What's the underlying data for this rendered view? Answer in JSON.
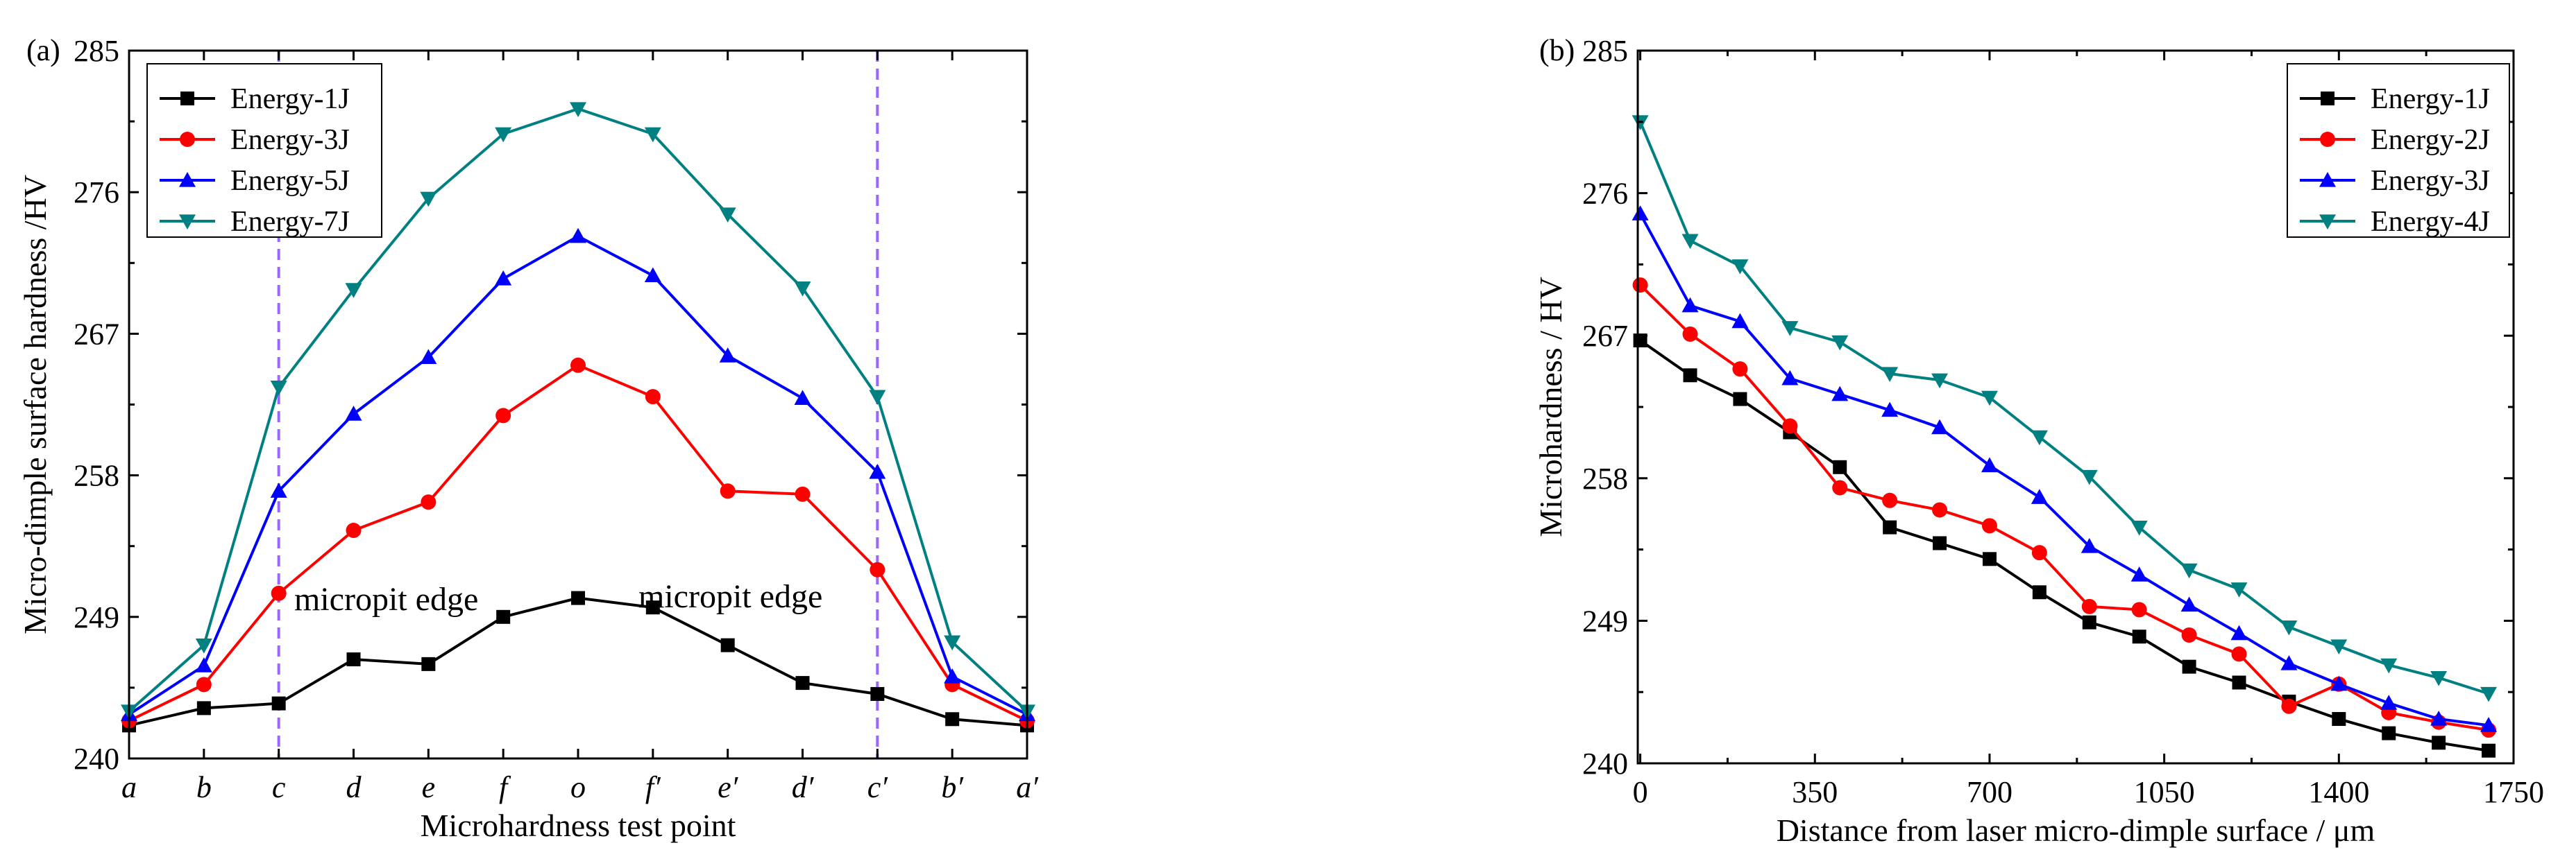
{
  "chart_data": [
    {
      "type": "line",
      "panel_label": "(a)",
      "xlabel": "Microhardness test point",
      "ylabel": "Micro-dimple surface hardness /HV",
      "categories": [
        "a",
        "b",
        "c",
        "d",
        "e",
        "f",
        "o",
        "f′",
        "e′",
        "d′",
        "c′",
        "b′",
        "a′"
      ],
      "ylim": [
        240,
        285
      ],
      "yticks": [
        "240",
        "249",
        "258",
        "267",
        "276",
        "285"
      ],
      "legend_position": "top-left",
      "grid": false,
      "series": [
        {
          "name": "Energy-1J",
          "color": "#000000",
          "marker": "square",
          "values": [
            242.1,
            243.2,
            243.5,
            246.3,
            246.0,
            249.0,
            250.2,
            249.6,
            247.2,
            244.8,
            244.1,
            242.5,
            242.1
          ]
        },
        {
          "name": "Energy-3J",
          "color": "#ff0000",
          "marker": "circle",
          "values": [
            242.4,
            244.7,
            250.5,
            254.5,
            256.3,
            261.8,
            265.0,
            263.0,
            257.0,
            256.8,
            252.0,
            244.7,
            242.4
          ]
        },
        {
          "name": "Energy-5J",
          "color": "#0000ff",
          "marker": "triangle-up",
          "values": [
            242.8,
            245.9,
            257.0,
            261.9,
            265.5,
            270.5,
            273.2,
            270.7,
            265.6,
            262.9,
            258.2,
            245.2,
            242.8
          ]
        },
        {
          "name": "Energy-7J",
          "color": "#008080",
          "marker": "triangle-down",
          "values": [
            243.0,
            247.2,
            263.6,
            269.8,
            275.6,
            279.7,
            281.3,
            279.7,
            274.6,
            269.9,
            263.0,
            247.4,
            243.0
          ]
        }
      ],
      "annotations": [
        {
          "text": "micropit edge"
        },
        {
          "text": "micropit edge"
        }
      ],
      "vlines": [
        2,
        10
      ],
      "vline_color": "#9966ff"
    },
    {
      "type": "line",
      "panel_label": "(b)",
      "xlabel": "Distance from laser micro-dimple surface / μm",
      "ylabel": "Microhardness / HV",
      "x": [
        0,
        100,
        200,
        300,
        400,
        500,
        600,
        700,
        800,
        900,
        1000,
        1100,
        1200,
        1300,
        1400,
        1500,
        1600,
        1700
      ],
      "xlim": [
        -5,
        1750
      ],
      "xticks": [
        "0",
        "350",
        "700",
        "1050",
        "1400",
        "1750"
      ],
      "ylim": [
        240,
        285
      ],
      "yticks": [
        "240",
        "249",
        "258",
        "267",
        "276",
        "285"
      ],
      "legend_position": "top-right",
      "grid": false,
      "series": [
        {
          "name": "Energy-1J",
          "color": "#000000",
          "marker": "square",
          "values": [
            266.7,
            264.5,
            263.0,
            260.9,
            258.7,
            254.9,
            253.9,
            252.9,
            250.8,
            248.9,
            248.0,
            246.1,
            245.1,
            243.9,
            242.8,
            241.9,
            241.3,
            240.8
          ]
        },
        {
          "name": "Energy-2J",
          "color": "#ff0000",
          "marker": "circle",
          "values": [
            270.2,
            267.1,
            264.9,
            261.3,
            257.4,
            256.6,
            256.0,
            255.0,
            253.3,
            249.9,
            249.7,
            248.1,
            246.9,
            243.6,
            245.0,
            243.2,
            242.6,
            242.1
          ]
        },
        {
          "name": "Energy-3J",
          "color": "#0000ff",
          "marker": "triangle-up",
          "values": [
            274.7,
            268.9,
            267.9,
            264.3,
            263.3,
            262.3,
            261.2,
            258.8,
            256.8,
            253.7,
            251.9,
            250.0,
            248.2,
            246.3,
            245.0,
            243.8,
            242.8,
            242.4
          ]
        },
        {
          "name": "Energy-4J",
          "color": "#008080",
          "marker": "triangle-down",
          "values": [
            280.5,
            273.0,
            271.4,
            267.5,
            266.6,
            264.6,
            264.2,
            263.1,
            260.6,
            258.1,
            254.9,
            252.2,
            251.0,
            248.6,
            247.4,
            246.2,
            245.4,
            244.4
          ]
        }
      ]
    }
  ]
}
